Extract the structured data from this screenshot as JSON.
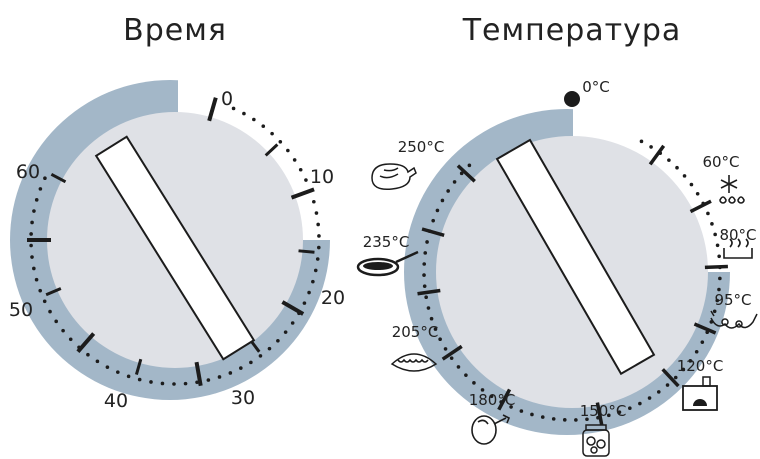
{
  "colors": {
    "ring": "#a3b7c8",
    "face": "#dfe1e6",
    "ink": "#1c1c1c",
    "pointer_fill": "#ffffff"
  },
  "time_dial": {
    "title": "Время",
    "labels": [
      "0",
      "10",
      "20",
      "30",
      "40",
      "50",
      "60"
    ],
    "dot_range_minutes": [
      0,
      60
    ]
  },
  "temperature_dial": {
    "title": "Температура",
    "settings": [
      {
        "label": "0°C",
        "icon": "off-dot-icon"
      },
      {
        "label": "60°C",
        "icon": "defrost-icon"
      },
      {
        "label": "80°C",
        "icon": "warming-icon"
      },
      {
        "label": "95°C",
        "icon": "proofing-icon"
      },
      {
        "label": "120°C",
        "icon": "oven-icon"
      },
      {
        "label": "150°C",
        "icon": "jar-icon"
      },
      {
        "label": "180°C",
        "icon": "meat-leg-icon"
      },
      {
        "label": "205°C",
        "icon": "pie-icon"
      },
      {
        "label": "235°C",
        "icon": "frying-pan-icon"
      },
      {
        "label": "250°C",
        "icon": "chicken-icon"
      }
    ]
  }
}
